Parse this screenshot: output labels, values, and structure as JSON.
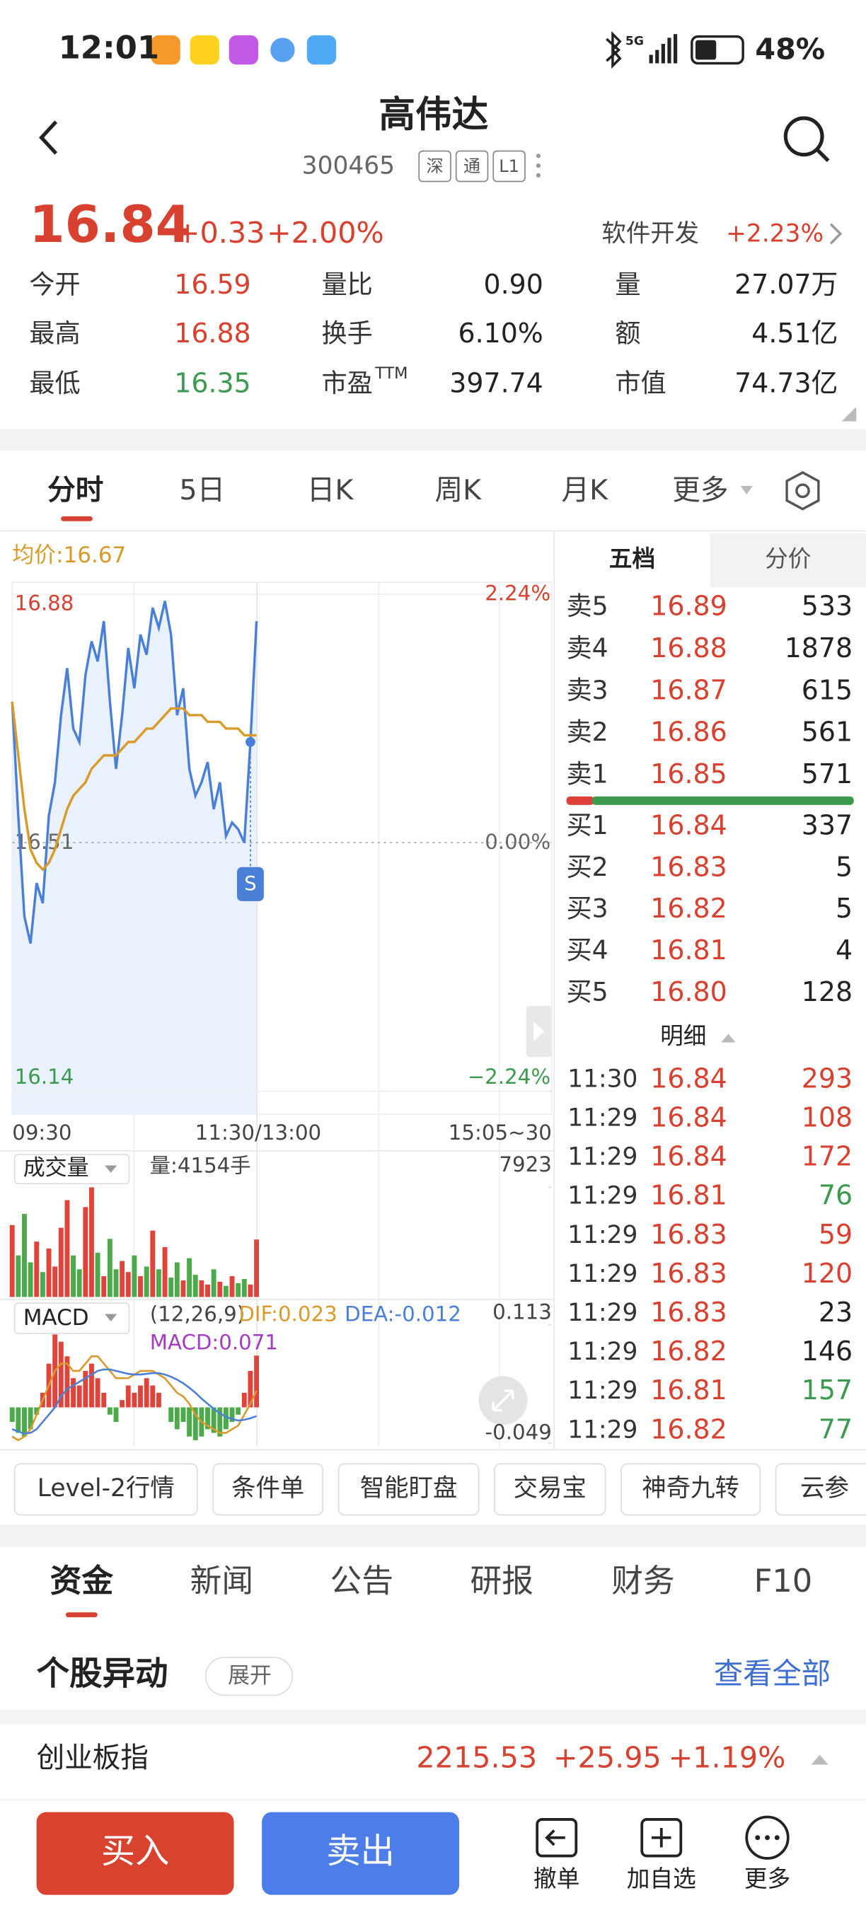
{
  "status_bar": {
    "time": "12:01",
    "network": "5G",
    "battery": "48%"
  },
  "header": {
    "title": "高伟达",
    "code": "300465",
    "tags": [
      "深",
      "通",
      "L1"
    ]
  },
  "quote": {
    "price": "16.84",
    "change": "+0.33",
    "change_pct": "+2.00%",
    "sector": "软件开发",
    "sector_change": "+2.23%"
  },
  "stats": [
    [
      {
        "label": "今开",
        "value": "16.59",
        "color": "#d8402f"
      },
      {
        "label": "量比",
        "value": "0.90"
      },
      {
        "label": "量",
        "value": "27.07万"
      }
    ],
    [
      {
        "label": "最高",
        "value": "16.88",
        "color": "#d8402f"
      },
      {
        "label": "换手",
        "value": "6.10%"
      },
      {
        "label": "额",
        "value": "4.51亿"
      }
    ],
    [
      {
        "label": "最低",
        "value": "16.35",
        "color": "#3c9a4e"
      },
      {
        "label": "市盈",
        "sup": "TTM",
        "value": "397.74"
      },
      {
        "label": "市值",
        "value": "74.73亿"
      }
    ]
  ],
  "chart_tabs": [
    "分时",
    "5日",
    "日K",
    "周K",
    "月K",
    "更多"
  ],
  "intraday": {
    "avg_label": "均价:16.67",
    "x": [
      0,
      3,
      6,
      9,
      12,
      15,
      18,
      21,
      24,
      27,
      30,
      33,
      36,
      39,
      42,
      45,
      48,
      51,
      54,
      57,
      60,
      63,
      66,
      69,
      72,
      75,
      78,
      81,
      84,
      87,
      90,
      93,
      96,
      99,
      102,
      105,
      108,
      111,
      114,
      117,
      120
    ],
    "xlim": [
      0,
      265
    ],
    "price": [
      16.72,
      16.55,
      16.4,
      16.36,
      16.45,
      16.42,
      16.55,
      16.6,
      16.7,
      16.77,
      16.68,
      16.66,
      16.76,
      16.81,
      16.78,
      16.84,
      16.72,
      16.62,
      16.7,
      16.8,
      16.74,
      16.82,
      16.79,
      16.86,
      16.83,
      16.87,
      16.82,
      16.7,
      16.74,
      16.62,
      16.58,
      16.6,
      16.63,
      16.56,
      16.6,
      16.52,
      16.54,
      16.53,
      16.51,
      16.66,
      16.84
    ],
    "avg": [
      16.72,
      16.64,
      16.56,
      16.5,
      16.48,
      16.47,
      16.48,
      16.5,
      16.53,
      16.56,
      16.58,
      16.59,
      16.6,
      16.62,
      16.63,
      16.64,
      16.64,
      16.64,
      16.65,
      16.66,
      16.66,
      16.67,
      16.68,
      16.68,
      16.69,
      16.7,
      16.71,
      16.71,
      16.71,
      16.7,
      16.7,
      16.7,
      16.69,
      16.69,
      16.69,
      16.68,
      16.68,
      16.68,
      16.67,
      16.67,
      16.67
    ],
    "price_color": "#4a7fd8",
    "avg_color": "#d99a2b",
    "ylim": [
      16.14,
      16.88
    ],
    "yticks": [
      16.14,
      16.51,
      16.88
    ],
    "y2lim": [
      -2.24,
      2.24
    ],
    "y2ticks": [
      {
        "value": -2.24,
        "label": "−2.24%"
      },
      {
        "value": 0,
        "label": "0.00%"
      },
      {
        "value": 2.24,
        "label": "2.24%"
      }
    ],
    "time_labels": [
      "09:30",
      "11:30/13:00",
      "15:05~30"
    ],
    "signal": "S"
  },
  "volume": {
    "label": "成交量",
    "info": "量:4154手",
    "ylim": [
      0,
      7923
    ],
    "yticks": [
      7923
    ],
    "values": [
      5200,
      3000,
      6000,
      2500,
      4000,
      1800,
      3500,
      2200,
      5000,
      7000,
      3000,
      2000,
      6500,
      7923,
      3200,
      1500,
      4200,
      2000,
      2600,
      1800,
      3000,
      1500,
      2200,
      4800,
      2000,
      3600,
      1400,
      2500,
      1200,
      2800,
      1600,
      1200,
      900,
      2000,
      1100,
      800,
      1500,
      1000,
      1300,
      900,
      4154
    ]
  },
  "macd": {
    "label": "MACD",
    "params": "(12,26,9)",
    "dif_label": "DIF:0.023",
    "dea_label": "DEA:-0.012",
    "macd_label": "MACD:0.071",
    "ylim": [
      -0.049,
      0.113
    ],
    "yticks": [
      -0.049,
      0.113
    ],
    "bars": [
      -0.02,
      -0.035,
      -0.04,
      -0.03,
      -0.01,
      0.02,
      0.06,
      0.1,
      0.09,
      0.07,
      0.04,
      0.03,
      0.05,
      0.06,
      0.04,
      0.02,
      -0.01,
      -0.02,
      0.01,
      0.03,
      0.02,
      0.03,
      0.04,
      0.03,
      0.02,
      0.0,
      -0.02,
      -0.03,
      -0.02,
      -0.04,
      -0.045,
      -0.04,
      -0.03,
      -0.035,
      -0.04,
      -0.03,
      -0.02,
      -0.01,
      0.02,
      0.05,
      0.071
    ],
    "dif": [
      -0.04,
      -0.045,
      -0.04,
      -0.03,
      -0.01,
      0.01,
      0.03,
      0.05,
      0.06,
      0.06,
      0.05,
      0.05,
      0.06,
      0.07,
      0.07,
      0.06,
      0.05,
      0.04,
      0.04,
      0.04,
      0.045,
      0.05,
      0.05,
      0.05,
      0.045,
      0.04,
      0.03,
      0.02,
      0.015,
      0.005,
      -0.01,
      -0.02,
      -0.025,
      -0.03,
      -0.035,
      -0.035,
      -0.03,
      -0.025,
      -0.01,
      0.005,
      0.023
    ],
    "dea": [
      -0.03,
      -0.033,
      -0.036,
      -0.035,
      -0.03,
      -0.02,
      -0.01,
      0.0,
      0.015,
      0.025,
      0.03,
      0.035,
      0.04,
      0.045,
      0.05,
      0.052,
      0.052,
      0.05,
      0.048,
      0.046,
      0.045,
      0.045,
      0.046,
      0.047,
      0.047,
      0.045,
      0.042,
      0.038,
      0.033,
      0.027,
      0.02,
      0.012,
      0.005,
      -0.002,
      -0.008,
      -0.013,
      -0.016,
      -0.018,
      -0.017,
      -0.015,
      -0.012
    ]
  },
  "order_book": {
    "tabs": [
      "五档",
      "分价"
    ],
    "asks": [
      {
        "label": "卖5",
        "price": "16.89",
        "volume": "533"
      },
      {
        "label": "卖4",
        "price": "16.88",
        "volume": "1878"
      },
      {
        "label": "卖3",
        "price": "16.87",
        "volume": "615"
      },
      {
        "label": "卖2",
        "price": "16.86",
        "volume": "561"
      },
      {
        "label": "卖1",
        "price": "16.85",
        "volume": "571"
      }
    ],
    "bids": [
      {
        "label": "买1",
        "price": "16.84",
        "volume": "337"
      },
      {
        "label": "买2",
        "price": "16.83",
        "volume": "5"
      },
      {
        "label": "买3",
        "price": "16.82",
        "volume": "5"
      },
      {
        "label": "买4",
        "price": "16.81",
        "volume": "4"
      },
      {
        "label": "买5",
        "price": "16.80",
        "volume": "128"
      }
    ],
    "detail_title": "明细",
    "trades": [
      {
        "time": "11:30",
        "price": "16.84",
        "volume": "293",
        "color": "#d8402f"
      },
      {
        "time": "11:29",
        "price": "16.84",
        "volume": "108",
        "color": "#d8402f"
      },
      {
        "time": "11:29",
        "price": "16.84",
        "volume": "172",
        "color": "#d8402f"
      },
      {
        "time": "11:29",
        "price": "16.81",
        "volume": "76",
        "color": "#3c9a4e"
      },
      {
        "time": "11:29",
        "price": "16.83",
        "volume": "59",
        "color": "#d8402f"
      },
      {
        "time": "11:29",
        "price": "16.83",
        "volume": "120",
        "color": "#d8402f"
      },
      {
        "time": "11:29",
        "price": "16.83",
        "volume": "23",
        "color": "#222222"
      },
      {
        "time": "11:29",
        "price": "16.82",
        "volume": "146",
        "color": "#222222"
      },
      {
        "time": "11:29",
        "price": "16.81",
        "volume": "157",
        "color": "#3c9a4e"
      },
      {
        "time": "11:29",
        "price": "16.82",
        "volume": "77",
        "color": "#3c9a4e"
      }
    ]
  },
  "tools": [
    "Level-2行情",
    "条件单",
    "智能盯盘",
    "交易宝",
    "神奇九转",
    "云参"
  ],
  "info_tabs": [
    "资金",
    "新闻",
    "公告",
    "研报",
    "财务",
    "F10"
  ],
  "section": {
    "title": "个股异动",
    "expand": "展开",
    "view_all": "查看全部"
  },
  "index_bar": {
    "name": "创业板指",
    "value": "2215.53",
    "change": "+25.95",
    "change_pct": "+1.19%"
  },
  "actions": {
    "buy": "买入",
    "sell": "卖出",
    "items": [
      "撤单",
      "加自选",
      "更多"
    ]
  }
}
